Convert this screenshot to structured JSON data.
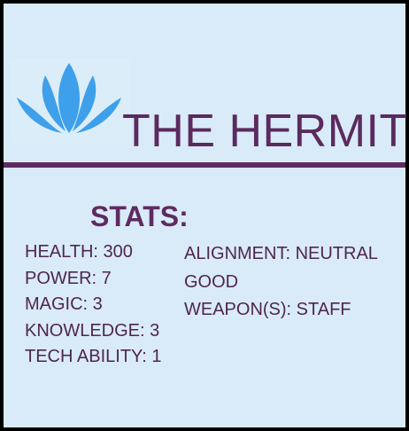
{
  "card": {
    "title": "THE HERMIT",
    "stats_heading": "STATS:",
    "stats_left": [
      "HEALTH: 300",
      "POWER: 7",
      "MAGIC: 3",
      "KNOWLEDGE: 3",
      "TECH ABILITY: 1"
    ],
    "stats_right": [
      "ALIGNMENT: NEUTRAL GOOD",
      "WEAPON(S): STAFF"
    ]
  },
  "icons": {
    "logo": "lotus-icon"
  },
  "colors": {
    "background": "#d9ebf8",
    "border": "#000000",
    "title_text": "#5b2a5e",
    "stats_heading": "#5e2a61",
    "stats_text": "#4f2552",
    "divider": "#5d2a61",
    "lotus": "#3ea0ea"
  }
}
